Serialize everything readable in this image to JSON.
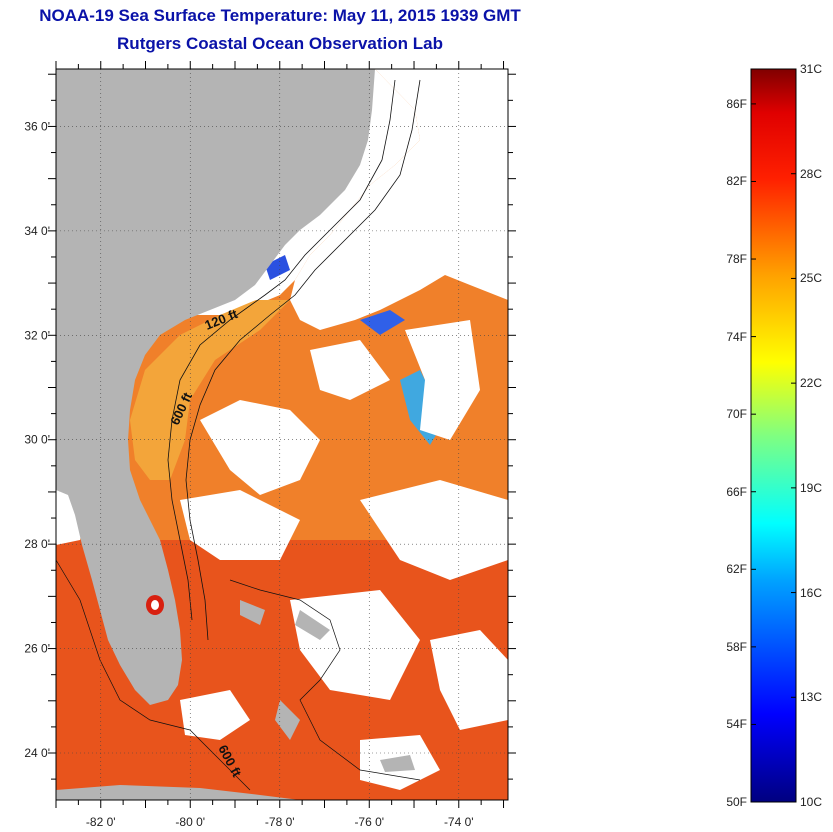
{
  "title": "NOAA-19 Sea Surface Temperature:  May 11, 2015 1939 GMT",
  "subtitle": "Rutgers Coastal Ocean Observation Lab",
  "map": {
    "lat_labels": [
      {
        "text": "36 0'",
        "lat": 36
      },
      {
        "text": "34 0'",
        "lat": 34
      },
      {
        "text": "32 0'",
        "lat": 32
      },
      {
        "text": "30 0'",
        "lat": 30
      },
      {
        "text": "28 0'",
        "lat": 28
      },
      {
        "text": "26 0'",
        "lat": 26
      },
      {
        "text": "24 0'",
        "lat": 24
      }
    ],
    "lon_labels": [
      {
        "text": "-82 0'",
        "lon": -82
      },
      {
        "text": "-80 0'",
        "lon": -80
      },
      {
        "text": "-78 0'",
        "lon": -78
      },
      {
        "text": "-76 0'",
        "lon": -76
      },
      {
        "text": "-74 0'",
        "lon": -74
      }
    ],
    "lat_range": [
      23.1,
      37.1
    ],
    "lon_range": [
      -83.0,
      -72.9
    ],
    "contour_labels": [
      "120 ft",
      "600 ft",
      "600 ft"
    ],
    "colors": {
      "land": "#b4b4b4",
      "cloud": "#ffffff",
      "warm": "#e84a1a",
      "mid": "#f07a24",
      "cool": "#f3a53a",
      "cold": "#1b33c8"
    }
  },
  "colorbar": {
    "min_c": 10,
    "max_c": 31,
    "fahrenheit": [
      "86F",
      "82F",
      "78F",
      "74F",
      "70F",
      "66F",
      "62F",
      "58F",
      "54F",
      "50F"
    ],
    "celsius": [
      "31C",
      "28C",
      "25C",
      "22C",
      "19C",
      "16C",
      "13C",
      "10C"
    ]
  }
}
